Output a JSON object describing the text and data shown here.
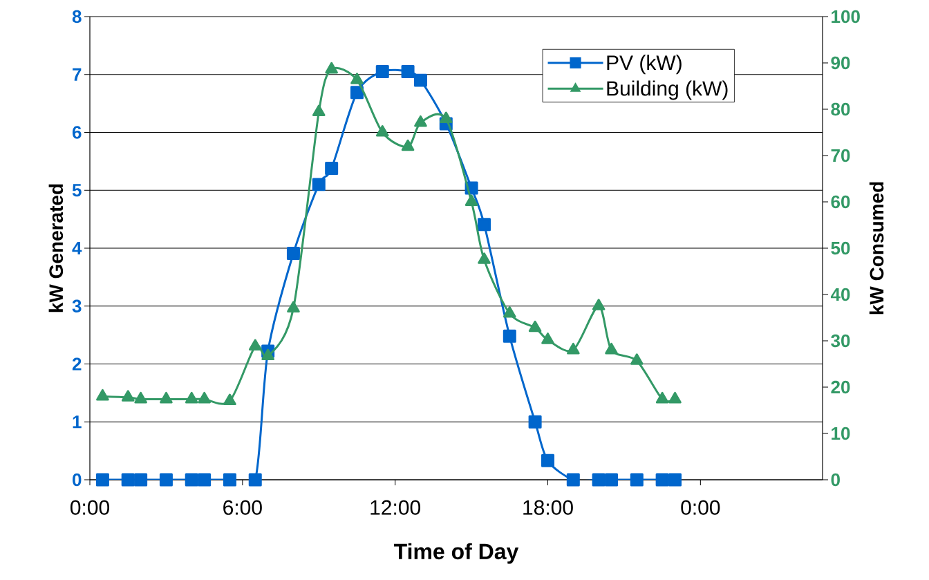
{
  "chart_data": {
    "type": "line",
    "xlabel": "Time of Day",
    "ylabel": "kW Generated",
    "y2label": "kW Consumed",
    "xlim": [
      0,
      28.8
    ],
    "xticks": [
      {
        "value": 0,
        "label": "0:00"
      },
      {
        "value": 6,
        "label": "6:00"
      },
      {
        "value": 12,
        "label": "12:00"
      },
      {
        "value": 18,
        "label": "18:00"
      },
      {
        "value": 24,
        "label": "0:00"
      }
    ],
    "ylim": [
      0,
      8
    ],
    "yticks": [
      0,
      1,
      2,
      3,
      4,
      5,
      6,
      7,
      8
    ],
    "y2lim": [
      0,
      100
    ],
    "y2ticks": [
      0,
      10,
      20,
      30,
      40,
      50,
      60,
      70,
      80,
      90,
      100
    ],
    "grid": "y",
    "legend": "top right",
    "line_style": "solid",
    "x": [
      0.5,
      1.5,
      2,
      3,
      4,
      4.5,
      5.5,
      6.5,
      7,
      8,
      9,
      9.5,
      10.5,
      11.5,
      12.5,
      13,
      14,
      15,
      15.5,
      16.5,
      17.5,
      18,
      19,
      20,
      20.5,
      21.5,
      22.5,
      23
    ],
    "series": [
      {
        "name": "PV (kW)",
        "color": "#0066cc",
        "marker": "square",
        "values": [
          0,
          0,
          0,
          0,
          0,
          0,
          0,
          0,
          2.22,
          3.91,
          5.1,
          5.38,
          6.69,
          7.05,
          7.05,
          6.9,
          6.15,
          5.04,
          4.41,
          2.48,
          1.0,
          0.33,
          0,
          0,
          0,
          0,
          0,
          0
        ]
      },
      {
        "name": "Building (kW)",
        "color": "#339966",
        "marker": "triangle",
        "axis": "y2",
        "values": [
          18,
          17.8,
          17.4,
          17.4,
          17.4,
          17.4,
          17,
          28.8,
          26.7,
          37,
          79.4,
          88.6,
          86.3,
          75,
          71.9,
          77.1,
          77.9,
          60,
          47.5,
          35.9,
          32.8,
          30.2,
          28,
          37.5,
          28,
          25.7,
          17.4,
          17.4
        ]
      }
    ]
  }
}
